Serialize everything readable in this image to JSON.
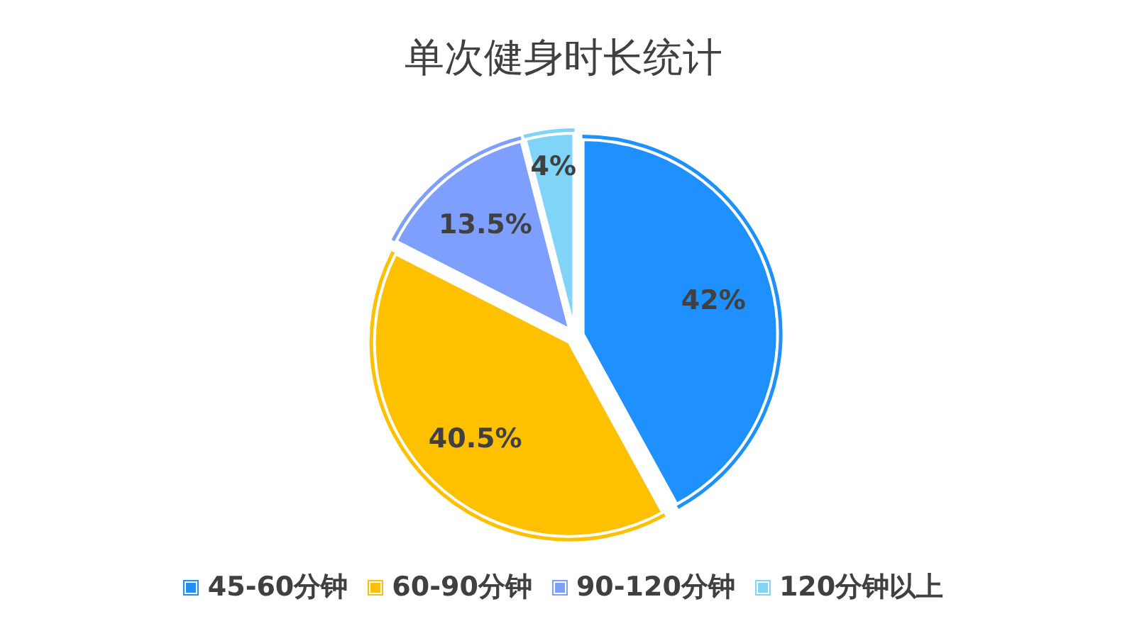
{
  "chart_data": {
    "type": "pie",
    "title": "单次健身时长统计",
    "categories": [
      "45-60分钟",
      "60-90分钟",
      "90-120分钟",
      "120分钟以上"
    ],
    "values": [
      42,
      40.5,
      13.5,
      4
    ],
    "colors": [
      "#1e90ff",
      "#ffc000",
      "#7f9fff",
      "#7fd4f8"
    ],
    "value_labels": [
      "42%",
      "40.5%",
      "13.5%",
      "4%"
    ],
    "legend": "bottom"
  }
}
